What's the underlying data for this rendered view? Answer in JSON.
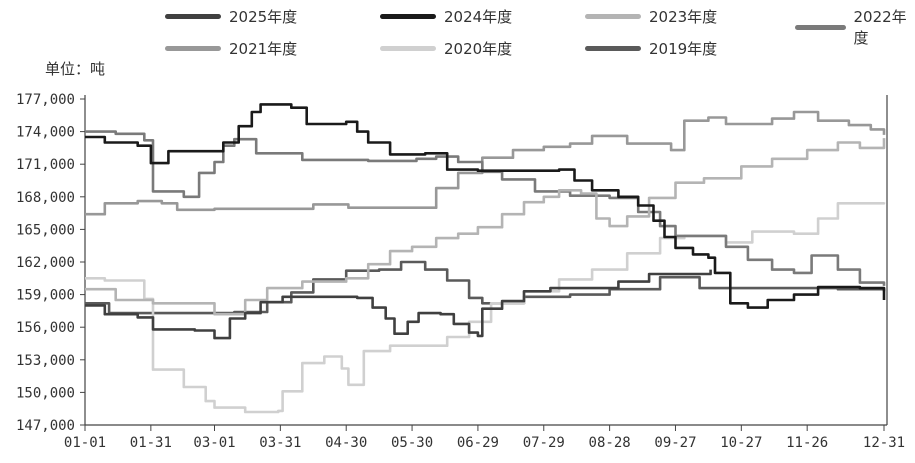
{
  "chart_data": {
    "type": "line",
    "step": true,
    "unit_label": "单位：吨",
    "ylim": [
      147000,
      177000
    ],
    "y_ticks": [
      "177,000",
      "174,000",
      "171,000",
      "168,000",
      "165,000",
      "162,000",
      "159,000",
      "156,000",
      "153,000",
      "150,000",
      "147,000"
    ],
    "x_ticks": [
      "01-01",
      "01-31",
      "03-01",
      "03-31",
      "04-30",
      "05-30",
      "06-29",
      "07-29",
      "08-28",
      "09-27",
      "10-27",
      "11-26",
      "12-31"
    ],
    "grid": false,
    "legend_position": "top",
    "series": [
      {
        "name": "2025年度",
        "color": "#404040",
        "points": [
          [
            "01-01",
            158000
          ],
          [
            "01-10",
            157200
          ],
          [
            "01-25",
            156900
          ],
          [
            "02-01",
            155800
          ],
          [
            "02-20",
            155700
          ],
          [
            "03-01",
            155000
          ],
          [
            "03-08",
            156800
          ],
          [
            "03-15",
            157300
          ],
          [
            "03-22",
            158300
          ],
          [
            "04-01",
            158800
          ],
          [
            "04-20",
            158800
          ],
          [
            "05-05",
            158700
          ],
          [
            "05-12",
            157800
          ],
          [
            "05-18",
            156800
          ],
          [
            "05-22",
            155400
          ],
          [
            "05-28",
            156500
          ],
          [
            "06-02",
            157300
          ],
          [
            "06-12",
            157200
          ],
          [
            "06-18",
            156300
          ],
          [
            "06-25",
            155500
          ],
          [
            "06-29",
            155200
          ],
          [
            "07-01",
            157700
          ],
          [
            "07-10",
            158400
          ],
          [
            "07-20",
            159300
          ],
          [
            "08-01",
            159600
          ],
          [
            "08-20",
            159600
          ],
          [
            "09-01",
            160200
          ],
          [
            "09-15",
            160900
          ],
          [
            "10-13",
            161300
          ]
        ]
      },
      {
        "name": "2024年度",
        "color": "#1a1a1a",
        "points": [
          [
            "01-01",
            173500
          ],
          [
            "01-10",
            173000
          ],
          [
            "01-25",
            172700
          ],
          [
            "01-31",
            171100
          ],
          [
            "02-08",
            172200
          ],
          [
            "03-01",
            172200
          ],
          [
            "03-05",
            173000
          ],
          [
            "03-12",
            174500
          ],
          [
            "03-18",
            175800
          ],
          [
            "03-22",
            176500
          ],
          [
            "04-05",
            176200
          ],
          [
            "04-12",
            174700
          ],
          [
            "04-30",
            174900
          ],
          [
            "05-05",
            174000
          ],
          [
            "05-10",
            173000
          ],
          [
            "05-20",
            171900
          ],
          [
            "06-05",
            172000
          ],
          [
            "06-15",
            170500
          ],
          [
            "06-29",
            170400
          ],
          [
            "07-20",
            170400
          ],
          [
            "08-05",
            170500
          ],
          [
            "08-12",
            169500
          ],
          [
            "08-20",
            168600
          ],
          [
            "09-01",
            168000
          ],
          [
            "09-10",
            167200
          ],
          [
            "09-17",
            165800
          ],
          [
            "09-22",
            164300
          ],
          [
            "09-27",
            163300
          ],
          [
            "10-05",
            162700
          ],
          [
            "10-12",
            162400
          ],
          [
            "10-15",
            161000
          ],
          [
            "10-22",
            158200
          ],
          [
            "10-30",
            157800
          ],
          [
            "11-08",
            158500
          ],
          [
            "11-20",
            159000
          ],
          [
            "12-01",
            159700
          ],
          [
            "12-20",
            159600
          ],
          [
            "12-31",
            158500
          ]
        ]
      },
      {
        "name": "2023年度",
        "color": "#b4b4b4",
        "points": [
          [
            "01-01",
            159500
          ],
          [
            "01-15",
            158500
          ],
          [
            "02-01",
            158200
          ],
          [
            "02-20",
            158200
          ],
          [
            "03-01",
            157200
          ],
          [
            "03-15",
            158500
          ],
          [
            "03-25",
            159600
          ],
          [
            "04-10",
            160200
          ],
          [
            "04-30",
            160500
          ],
          [
            "05-10",
            161800
          ],
          [
            "05-20",
            163000
          ],
          [
            "05-30",
            163400
          ],
          [
            "06-10",
            164200
          ],
          [
            "06-20",
            164600
          ],
          [
            "06-29",
            165200
          ],
          [
            "07-10",
            166400
          ],
          [
            "07-20",
            167500
          ],
          [
            "07-29",
            168000
          ],
          [
            "08-05",
            168600
          ],
          [
            "08-15",
            168300
          ],
          [
            "08-22",
            166000
          ],
          [
            "08-28",
            165300
          ],
          [
            "09-05",
            166200
          ],
          [
            "09-15",
            167900
          ],
          [
            "09-27",
            169300
          ],
          [
            "10-10",
            169700
          ],
          [
            "10-27",
            170800
          ],
          [
            "11-10",
            171500
          ],
          [
            "11-26",
            172300
          ],
          [
            "12-10",
            173000
          ],
          [
            "12-20",
            172500
          ],
          [
            "12-31",
            173400
          ]
        ]
      },
      {
        "name": "2022年度",
        "color": "#7a7a7a",
        "points": [
          [
            "01-01",
            174000
          ],
          [
            "01-15",
            173800
          ],
          [
            "01-28",
            173200
          ],
          [
            "02-01",
            168500
          ],
          [
            "02-15",
            168000
          ],
          [
            "02-22",
            170200
          ],
          [
            "03-01",
            171200
          ],
          [
            "03-05",
            172700
          ],
          [
            "03-10",
            173300
          ],
          [
            "03-20",
            172000
          ],
          [
            "04-10",
            171400
          ],
          [
            "05-10",
            171300
          ],
          [
            "06-01",
            171500
          ],
          [
            "06-10",
            171700
          ],
          [
            "06-20",
            171200
          ],
          [
            "07-01",
            170300
          ],
          [
            "07-10",
            169600
          ],
          [
            "07-25",
            168500
          ],
          [
            "08-10",
            168100
          ],
          [
            "08-28",
            167900
          ],
          [
            "09-10",
            166600
          ],
          [
            "09-20",
            165300
          ],
          [
            "09-27",
            164400
          ],
          [
            "10-10",
            164400
          ],
          [
            "10-20",
            163400
          ],
          [
            "10-30",
            162200
          ],
          [
            "11-10",
            161300
          ],
          [
            "11-20",
            161000
          ],
          [
            "11-28",
            162600
          ],
          [
            "12-10",
            161300
          ],
          [
            "12-20",
            160100
          ],
          [
            "12-31",
            159800
          ]
        ]
      },
      {
        "name": "2021年度",
        "color": "#989898",
        "points": [
          [
            "01-01",
            166400
          ],
          [
            "01-10",
            167400
          ],
          [
            "01-25",
            167600
          ],
          [
            "02-05",
            167400
          ],
          [
            "02-12",
            166800
          ],
          [
            "03-01",
            166900
          ],
          [
            "04-01",
            166900
          ],
          [
            "04-15",
            167300
          ],
          [
            "05-01",
            167000
          ],
          [
            "06-01",
            167000
          ],
          [
            "06-10",
            168800
          ],
          [
            "06-20",
            170200
          ],
          [
            "07-01",
            171600
          ],
          [
            "07-15",
            172300
          ],
          [
            "07-29",
            172600
          ],
          [
            "08-10",
            172900
          ],
          [
            "08-20",
            173600
          ],
          [
            "09-05",
            172900
          ],
          [
            "09-25",
            172300
          ],
          [
            "10-01",
            175000
          ],
          [
            "10-12",
            175300
          ],
          [
            "10-20",
            174700
          ],
          [
            "11-10",
            175200
          ],
          [
            "11-20",
            175800
          ],
          [
            "12-01",
            175000
          ],
          [
            "12-15",
            174600
          ],
          [
            "12-25",
            174200
          ],
          [
            "12-31",
            173700
          ]
        ]
      },
      {
        "name": "2020年度",
        "color": "#d0d0d0",
        "points": [
          [
            "01-01",
            160500
          ],
          [
            "01-10",
            160300
          ],
          [
            "01-28",
            158600
          ],
          [
            "02-01",
            152100
          ],
          [
            "02-15",
            150500
          ],
          [
            "02-25",
            149200
          ],
          [
            "03-01",
            148600
          ],
          [
            "03-15",
            148200
          ],
          [
            "03-30",
            148300
          ],
          [
            "04-01",
            150100
          ],
          [
            "04-10",
            152700
          ],
          [
            "04-20",
            153300
          ],
          [
            "04-28",
            152200
          ],
          [
            "05-01",
            150700
          ],
          [
            "05-08",
            153800
          ],
          [
            "05-20",
            154300
          ],
          [
            "06-05",
            154300
          ],
          [
            "06-15",
            155100
          ],
          [
            "06-25",
            156500
          ],
          [
            "07-05",
            158200
          ],
          [
            "07-20",
            159300
          ],
          [
            "08-05",
            160400
          ],
          [
            "08-20",
            161300
          ],
          [
            "09-05",
            162800
          ],
          [
            "09-20",
            164200
          ],
          [
            "10-01",
            164400
          ],
          [
            "10-20",
            163800
          ],
          [
            "11-01",
            164800
          ],
          [
            "11-20",
            164600
          ],
          [
            "12-01",
            166000
          ],
          [
            "12-10",
            167400
          ],
          [
            "12-31",
            167500
          ]
        ]
      },
      {
        "name": "2019年度",
        "color": "#5a5a5a",
        "points": [
          [
            "01-01",
            158200
          ],
          [
            "01-12",
            157300
          ],
          [
            "02-01",
            157300
          ],
          [
            "03-10",
            157400
          ],
          [
            "03-25",
            158300
          ],
          [
            "04-05",
            159200
          ],
          [
            "04-15",
            160400
          ],
          [
            "04-30",
            161200
          ],
          [
            "05-15",
            161300
          ],
          [
            "05-25",
            162000
          ],
          [
            "06-05",
            161300
          ],
          [
            "06-15",
            160300
          ],
          [
            "06-25",
            158700
          ],
          [
            "07-01",
            158200
          ],
          [
            "07-20",
            158800
          ],
          [
            "08-10",
            159000
          ],
          [
            "08-28",
            159500
          ],
          [
            "09-20",
            160600
          ],
          [
            "10-05",
            160600
          ],
          [
            "10-08",
            159600
          ],
          [
            "11-01",
            159600
          ],
          [
            "12-10",
            159500
          ],
          [
            "12-31",
            159300
          ]
        ]
      }
    ]
  }
}
